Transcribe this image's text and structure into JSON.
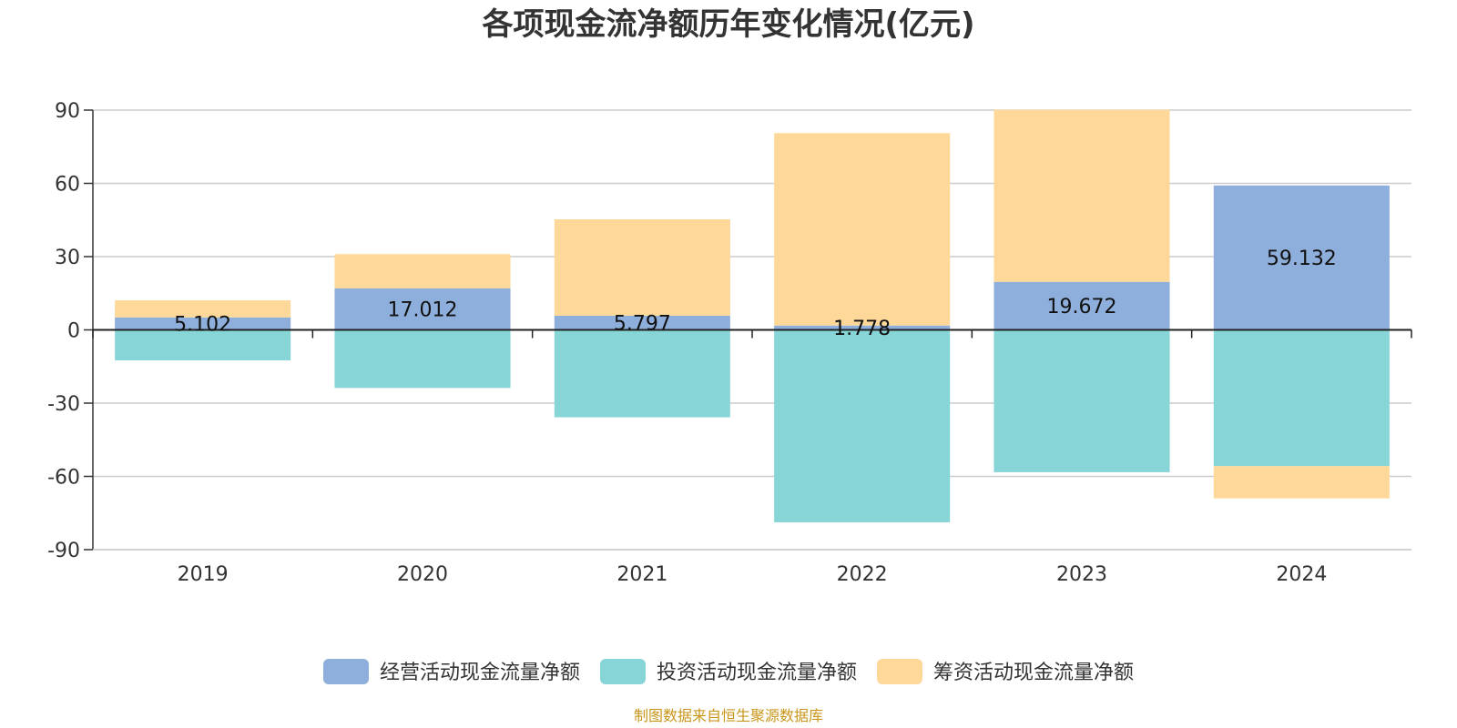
{
  "chart_data": {
    "type": "bar",
    "stacked": true,
    "title": "各项现金流净额历年变化情况(亿元)",
    "categories": [
      "2019",
      "2020",
      "2021",
      "2022",
      "2023",
      "2024"
    ],
    "ylim": [
      -90,
      90
    ],
    "yticks": [
      90,
      60,
      30,
      0,
      -30,
      -60,
      -90
    ],
    "grid": true,
    "legend_position": "bottom",
    "series": [
      {
        "name": "经营活动现金流量净额",
        "color": "#8eaedb",
        "values": [
          5.102,
          17.012,
          5.797,
          1.778,
          19.672,
          59.132
        ],
        "labels": [
          "5.102",
          "17.012",
          "5.797",
          "1.778",
          "19.672",
          "59.132"
        ]
      },
      {
        "name": "投资活动现金流量净额",
        "color": "#88d5d8",
        "values": [
          -12.5,
          -23.8,
          -35.8,
          -78.8,
          -58.3,
          -55.8
        ]
      },
      {
        "name": "筹资活动现金流量净额",
        "color": "#fed898",
        "values": [
          7.0,
          14.0,
          39.5,
          78.8,
          70.5,
          -13.2
        ]
      }
    ],
    "source": "制图数据来自恒生聚源数据库"
  }
}
